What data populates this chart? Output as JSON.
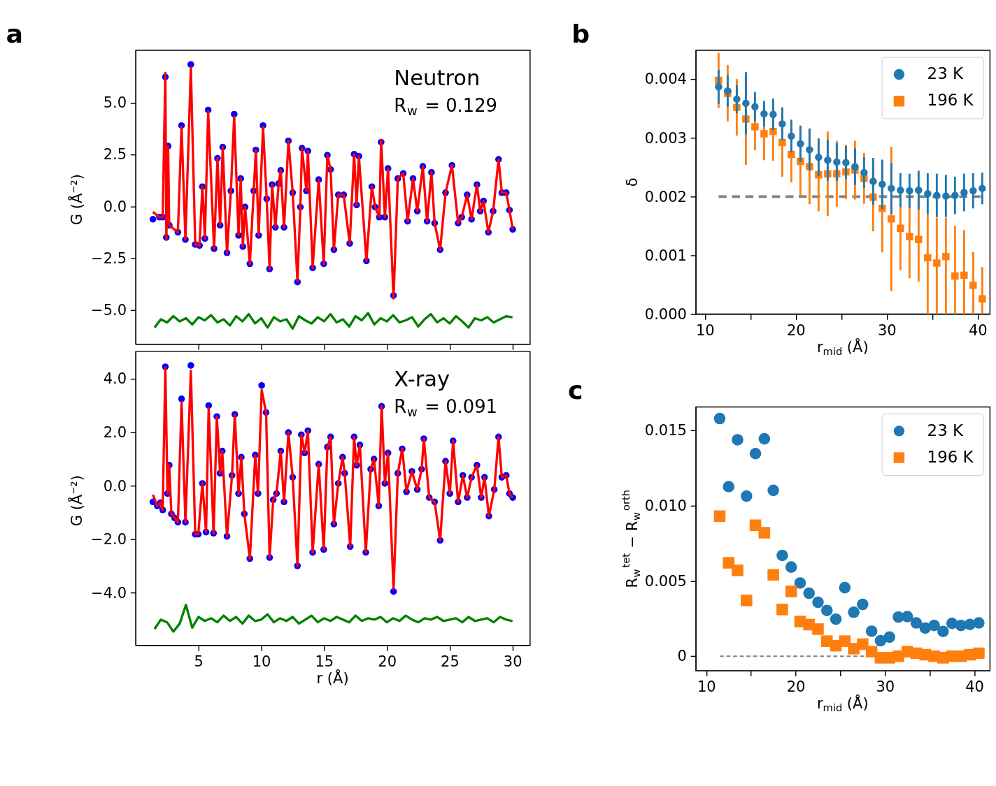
{
  "chart_data": [
    {
      "type": "line",
      "title": "a",
      "ylabel": "G (Å⁻²)",
      "annotations": [
        "Neutron",
        "R$_{w}$ = 0.129"
      ],
      "xlim": [
        0,
        31.4
      ],
      "ylim": [
        -6.65,
        7.53
      ],
      "xticks": [
        5,
        10,
        15,
        20,
        25,
        30
      ],
      "yticks": [
        {
          "value": -5.0,
          "label": "−5.0"
        },
        {
          "value": -2.5,
          "label": "−2.5"
        },
        {
          "value": 0.0,
          "label": "0.0"
        },
        {
          "value": 2.5,
          "label": "2.5"
        },
        {
          "value": 5.0,
          "label": "5.0"
        }
      ],
      "tick_labels": "y",
      "grid": false,
      "series": [
        {
          "type": "scatter",
          "marker": "circle",
          "color": "#0000ff",
          "x": [
            1.37,
            1.89,
            2.15,
            2.36,
            2.44,
            2.58,
            2.67,
            3.36,
            3.65,
            3.96,
            4.39,
            4.74,
            5.08,
            5.31,
            5.51,
            5.77,
            6.24,
            6.51,
            6.72,
            6.93,
            7.27,
            7.58,
            7.84,
            8.19,
            8.36,
            8.53,
            8.71,
            9.09,
            9.4,
            9.57,
            9.79,
            10.14,
            10.43,
            10.66,
            10.86,
            11.12,
            11.38,
            11.55,
            11.81,
            12.16,
            12.5,
            12.88,
            13.11,
            13.24,
            13.59,
            13.71,
            14.09,
            14.57,
            14.97,
            15.26,
            15.52,
            15.78,
            16.13,
            16.56,
            17.04,
            17.39,
            17.59,
            17.77,
            18.37,
            18.8,
            19.06,
            19.4,
            19.54,
            19.84,
            20.09,
            20.53,
            20.87,
            21.3,
            21.65,
            22.08,
            22.42,
            22.86,
            23.2,
            23.55,
            23.8,
            24.24,
            24.67,
            25.18,
            25.67,
            25.96,
            26.39,
            26.74,
            27.17,
            27.43,
            27.69,
            28.08,
            28.46,
            28.89,
            29.15,
            29.5,
            29.76,
            30.02
          ],
          "values": [
            -0.62,
            -0.52,
            -0.52,
            6.25,
            -1.5,
            2.91,
            -0.91,
            -1.25,
            3.9,
            -1.6,
            6.85,
            -1.84,
            -1.89,
            0.95,
            -1.55,
            4.65,
            -2.04,
            2.32,
            -0.91,
            2.86,
            -2.24,
            0.75,
            4.45,
            -1.4,
            1.34,
            -1.94,
            -0.03,
            -2.77,
            0.75,
            2.72,
            -1.4,
            3.9,
            0.36,
            -3.02,
            1.05,
            -1.01,
            1.1,
            1.74,
            -1.01,
            3.16,
            0.66,
            -3.65,
            -0.03,
            2.81,
            0.75,
            2.67,
            -2.97,
            1.29,
            -2.77,
            2.47,
            1.78,
            -2.09,
            0.56,
            0.56,
            -1.79,
            2.52,
            0.07,
            2.42,
            -2.63,
            0.95,
            -0.03,
            -0.52,
            3.1,
            -0.52,
            1.83,
            -4.3,
            1.34,
            1.59,
            -0.72,
            1.34,
            -0.23,
            1.93,
            -0.72,
            1.64,
            -0.81,
            -2.09,
            0.66,
            1.98,
            -0.81,
            -0.52,
            0.56,
            -0.62,
            1.05,
            -0.23,
            0.26,
            -1.25,
            -0.23,
            2.27,
            0.66,
            0.66,
            -0.18,
            -1.11
          ]
        },
        {
          "type": "line",
          "marker": "none",
          "line_style": "solid",
          "color": "#ff0000",
          "x": [
            1.37,
            1.89,
            2.15,
            2.36,
            2.44,
            2.58,
            2.67,
            3.36,
            3.65,
            3.96,
            4.39,
            4.74,
            5.08,
            5.31,
            5.51,
            5.77,
            6.24,
            6.51,
            6.72,
            6.93,
            7.27,
            7.58,
            7.84,
            8.19,
            8.36,
            8.53,
            8.71,
            9.09,
            9.4,
            9.57,
            9.79,
            10.14,
            10.43,
            10.66,
            10.86,
            11.12,
            11.38,
            11.55,
            11.81,
            12.16,
            12.5,
            12.88,
            13.11,
            13.24,
            13.59,
            13.71,
            14.09,
            14.57,
            14.97,
            15.26,
            15.52,
            15.78,
            16.13,
            16.56,
            17.04,
            17.39,
            17.59,
            17.77,
            18.37,
            18.8,
            19.06,
            19.4,
            19.54,
            19.84,
            20.09,
            20.53,
            20.87,
            21.3,
            21.65,
            22.08,
            22.42,
            22.86,
            23.2,
            23.55,
            23.8,
            24.24,
            24.67,
            25.18,
            25.67,
            25.96,
            26.39,
            26.74,
            27.17,
            27.43,
            27.69,
            28.08,
            28.46,
            28.89,
            29.15,
            29.5,
            29.76,
            30.02
          ],
          "values": [
            -0.27,
            -0.52,
            -0.52,
            6.44,
            -1.6,
            2.91,
            -0.91,
            -1.25,
            3.84,
            -1.6,
            6.69,
            -1.84,
            -1.89,
            0.95,
            -1.55,
            4.58,
            -2.04,
            2.32,
            -0.91,
            2.86,
            -2.24,
            0.75,
            4.33,
            -1.4,
            1.34,
            -1.94,
            -0.03,
            -2.77,
            0.75,
            2.72,
            -1.4,
            3.84,
            0.36,
            -3.02,
            1.05,
            -1.01,
            1.1,
            1.74,
            -1.01,
            3.16,
            0.66,
            -3.61,
            -0.03,
            2.81,
            0.75,
            2.67,
            -2.97,
            1.29,
            -2.77,
            2.47,
            1.78,
            -2.09,
            0.56,
            0.56,
            -1.79,
            2.52,
            0.07,
            2.42,
            -2.63,
            0.95,
            -0.03,
            -0.52,
            3.21,
            -0.52,
            1.83,
            -4.44,
            1.34,
            1.59,
            -0.72,
            1.34,
            -0.23,
            1.93,
            -0.72,
            1.64,
            -0.81,
            -2.09,
            0.66,
            1.98,
            -0.81,
            -0.52,
            0.56,
            -0.62,
            1.05,
            -0.23,
            0.26,
            -1.25,
            -0.23,
            2.27,
            0.66,
            0.66,
            -0.18,
            -1.11
          ]
        },
        {
          "type": "line",
          "marker": "none",
          "line_style": "solid",
          "color": "#008000",
          "x": [
            1.5,
            2,
            2.5,
            3,
            3.5,
            4,
            4.5,
            5,
            5.5,
            6,
            6.5,
            7,
            7.5,
            8,
            8.5,
            9,
            9.5,
            10,
            10.5,
            11,
            11.5,
            12,
            12.5,
            13,
            13.5,
            14,
            14.5,
            15,
            15.5,
            16,
            16.5,
            17,
            17.5,
            18,
            18.5,
            19,
            19.5,
            20,
            20.5,
            21,
            21.5,
            22,
            22.5,
            23,
            23.5,
            24,
            24.5,
            25,
            25.5,
            26,
            26.5,
            27,
            27.5,
            28,
            28.5,
            29,
            29.5,
            30
          ],
          "values": [
            -5.85,
            -5.45,
            -5.6,
            -5.3,
            -5.55,
            -5.4,
            -5.7,
            -5.35,
            -5.5,
            -5.25,
            -5.6,
            -5.45,
            -5.75,
            -5.3,
            -5.55,
            -5.2,
            -5.65,
            -5.4,
            -5.85,
            -5.35,
            -5.55,
            -5.45,
            -5.9,
            -5.3,
            -5.5,
            -5.65,
            -5.35,
            -5.55,
            -5.2,
            -5.6,
            -5.45,
            -5.8,
            -5.3,
            -5.5,
            -5.15,
            -5.7,
            -5.4,
            -5.55,
            -5.25,
            -5.6,
            -5.5,
            -5.35,
            -5.8,
            -5.45,
            -5.2,
            -5.6,
            -5.4,
            -5.65,
            -5.3,
            -5.55,
            -5.85,
            -5.4,
            -5.5,
            -5.35,
            -5.6,
            -5.45,
            -5.3,
            -5.35
          ]
        }
      ]
    },
    {
      "type": "line",
      "xlabel": "r (Å)",
      "ylabel": "G (Å⁻²)",
      "annotations": [
        "X-ray",
        "R$_{w}$ = 0.091"
      ],
      "xlim": [
        0,
        31.4
      ],
      "ylim": [
        -5.96,
        5.02
      ],
      "xticks": [
        5,
        10,
        15,
        20,
        25,
        30
      ],
      "yticks": [
        {
          "value": -4.0,
          "label": "−4.0"
        },
        {
          "value": -2.0,
          "label": "−2.0"
        },
        {
          "value": 0.0,
          "label": "0.0"
        },
        {
          "value": 2.0,
          "label": "2.0"
        },
        {
          "value": 4.0,
          "label": "4.0"
        }
      ],
      "grid": false,
      "series": [
        {
          "type": "scatter",
          "marker": "circle",
          "color": "#0000ff",
          "x": [
            1.37,
            1.72,
            1.98,
            2.15,
            2.36,
            2.53,
            2.67,
            2.84,
            3.1,
            3.36,
            3.65,
            3.96,
            4.39,
            4.74,
            4.98,
            5.31,
            5.6,
            5.81,
            6.2,
            6.46,
            6.72,
            6.89,
            7.27,
            7.67,
            7.89,
            8.19,
            8.41,
            8.65,
            9.09,
            9.52,
            9.74,
            10.03,
            10.38,
            10.66,
            10.95,
            11.21,
            11.55,
            11.81,
            12.16,
            12.5,
            12.88,
            13.19,
            13.45,
            13.71,
            14.09,
            14.57,
            14.97,
            15.26,
            15.52,
            15.78,
            16.13,
            16.47,
            16.64,
            17.08,
            17.39,
            17.59,
            17.85,
            18.32,
            18.71,
            18.97,
            19.35,
            19.58,
            19.84,
            20.09,
            20.53,
            20.87,
            21.22,
            21.56,
            21.99,
            22.42,
            22.77,
            22.94,
            23.37,
            23.8,
            24.24,
            24.67,
            25.01,
            25.27,
            25.67,
            26.05,
            26.39,
            26.74,
            27.17,
            27.51,
            27.77,
            28.12,
            28.55,
            28.89,
            29.15,
            29.5,
            29.76,
            30.02
          ],
          "values": [
            -0.6,
            -0.75,
            -0.63,
            -0.9,
            4.45,
            -0.29,
            0.77,
            -1.05,
            -1.2,
            -1.36,
            3.25,
            -1.36,
            4.5,
            -1.81,
            -1.81,
            0.09,
            -1.73,
            3.0,
            -1.77,
            2.59,
            0.47,
            1.3,
            -1.89,
            0.39,
            2.67,
            -0.29,
            1.07,
            -1.05,
            -2.72,
            1.15,
            -0.29,
            3.75,
            2.74,
            -2.68,
            -0.52,
            -0.29,
            1.3,
            -0.6,
            1.99,
            0.32,
            -2.99,
            1.91,
            1.23,
            2.06,
            -2.49,
            0.81,
            -2.38,
            1.45,
            1.83,
            -1.43,
            0.09,
            1.07,
            0.47,
            -2.27,
            1.83,
            0.77,
            1.53,
            -2.49,
            0.62,
            1.0,
            -0.75,
            2.97,
            0.09,
            1.23,
            -3.95,
            0.47,
            1.38,
            -0.22,
            0.54,
            -0.14,
            0.62,
            1.76,
            -0.44,
            -0.6,
            -2.04,
            0.92,
            -0.29,
            1.68,
            -0.6,
            0.39,
            -0.44,
            0.32,
            0.77,
            -0.44,
            0.32,
            -1.13,
            -0.14,
            1.83,
            0.32,
            0.39,
            -0.29,
            -0.44
          ]
        },
        {
          "type": "line",
          "marker": "none",
          "line_style": "solid",
          "color": "#ff0000",
          "x": [
            1.37,
            1.72,
            1.98,
            2.15,
            2.36,
            2.53,
            2.67,
            2.84,
            3.1,
            3.36,
            3.65,
            3.96,
            4.39,
            4.74,
            4.98,
            5.31,
            5.6,
            5.81,
            6.2,
            6.46,
            6.72,
            6.89,
            7.27,
            7.67,
            7.89,
            8.19,
            8.41,
            8.65,
            9.09,
            9.52,
            9.74,
            10.03,
            10.38,
            10.66,
            10.95,
            11.21,
            11.55,
            11.81,
            12.16,
            12.5,
            12.88,
            13.19,
            13.45,
            13.71,
            14.09,
            14.57,
            14.97,
            15.26,
            15.52,
            15.78,
            16.13,
            16.47,
            16.64,
            17.08,
            17.39,
            17.59,
            17.85,
            18.32,
            18.71,
            18.97,
            19.35,
            19.58,
            19.84,
            20.09,
            20.53,
            20.87,
            21.22,
            21.56,
            21.99,
            22.42,
            22.77,
            22.94,
            23.37,
            23.8,
            24.24,
            24.67,
            25.01,
            25.27,
            25.67,
            26.05,
            26.39,
            26.74,
            27.17,
            27.51,
            27.77,
            28.12,
            28.55,
            28.89,
            29.15,
            29.5,
            29.76,
            30.02
          ],
          "values": [
            -0.33,
            -0.75,
            -0.63,
            -0.9,
            4.42,
            -0.29,
            0.77,
            -1.05,
            -1.2,
            -1.36,
            3.12,
            -1.36,
            4.3,
            -1.81,
            -1.81,
            0.09,
            -1.73,
            2.9,
            -1.77,
            2.59,
            0.47,
            1.3,
            -1.89,
            0.39,
            2.67,
            -0.29,
            1.07,
            -1.05,
            -2.72,
            1.15,
            -0.29,
            3.58,
            2.74,
            -2.68,
            -0.52,
            -0.29,
            1.3,
            -0.6,
            1.99,
            0.32,
            -2.99,
            1.91,
            1.23,
            2.06,
            -2.49,
            0.81,
            -2.38,
            1.45,
            1.83,
            -1.43,
            0.09,
            1.07,
            0.47,
            -2.27,
            1.83,
            0.77,
            1.53,
            -2.49,
            0.62,
            1.0,
            -0.75,
            2.97,
            0.09,
            1.23,
            -3.86,
            0.47,
            1.38,
            -0.22,
            0.54,
            -0.14,
            0.62,
            1.76,
            -0.44,
            -0.6,
            -2.04,
            0.92,
            -0.29,
            1.68,
            -0.6,
            0.39,
            -0.44,
            0.32,
            0.77,
            -0.44,
            0.32,
            -1.13,
            -0.14,
            1.83,
            0.32,
            0.39,
            -0.29,
            -0.44
          ]
        },
        {
          "type": "line",
          "marker": "none",
          "line_style": "solid",
          "color": "#008000",
          "x": [
            1.5,
            2,
            2.5,
            3,
            3.5,
            4,
            4.5,
            5,
            5.5,
            6,
            6.5,
            7,
            7.5,
            8,
            8.5,
            9,
            9.5,
            10,
            10.5,
            11,
            11.5,
            12,
            12.5,
            13,
            13.5,
            14,
            14.5,
            15,
            15.5,
            16,
            16.5,
            17,
            17.5,
            18,
            18.5,
            19,
            19.5,
            20,
            20.5,
            21,
            21.5,
            22,
            22.5,
            23,
            23.5,
            24,
            24.5,
            25,
            25.5,
            26,
            26.5,
            27,
            27.5,
            28,
            28.5,
            29,
            29.5,
            30
          ],
          "values": [
            -5.35,
            -5.0,
            -5.1,
            -5.45,
            -5.15,
            -4.45,
            -5.3,
            -4.9,
            -5.05,
            -4.95,
            -5.1,
            -4.85,
            -5.05,
            -4.9,
            -5.15,
            -4.85,
            -5.05,
            -5.0,
            -4.8,
            -5.1,
            -4.95,
            -5.05,
            -4.9,
            -5.15,
            -5.0,
            -4.85,
            -5.1,
            -4.95,
            -5.05,
            -4.9,
            -5.0,
            -5.1,
            -4.85,
            -5.05,
            -4.95,
            -5.0,
            -4.9,
            -5.1,
            -4.95,
            -5.05,
            -4.85,
            -5.0,
            -5.1,
            -4.95,
            -5.0,
            -4.9,
            -5.05,
            -5.0,
            -4.95,
            -5.1,
            -4.9,
            -5.05,
            -5.0,
            -4.95,
            -5.1,
            -4.9,
            -5.0,
            -5.05
          ]
        }
      ]
    },
    {
      "type": "scatter",
      "title": "b",
      "xlabel": "r$_{mid}$ (Å)",
      "ylabel": "δ",
      "xlim": [
        9.0,
        41.35
      ],
      "ylim": [
        0,
        0.00449
      ],
      "xticks": [
        10,
        {
          "value": 15,
          "label": null
        },
        20,
        {
          "value": 25,
          "label": null
        },
        30,
        {
          "value": 35,
          "label": null
        },
        40
      ],
      "yticks": [
        {
          "value": 0,
          "label": "0.000"
        },
        {
          "value": 0.001,
          "label": "0.001"
        },
        {
          "value": 0.002,
          "label": "0.002"
        },
        {
          "value": 0.003,
          "label": "0.003"
        },
        {
          "value": 0.004,
          "label": "0.004"
        }
      ],
      "grid": false,
      "legend": "top right",
      "ref_lines": [
        {
          "axis": "y",
          "value": 0.002,
          "color": "#808080",
          "line_style": "dashed"
        }
      ],
      "series": [
        {
          "name": "23 K",
          "marker": "circle",
          "color": "#1f77b4",
          "x": [
            11.5,
            12.5,
            13.5,
            14.5,
            15.5,
            16.5,
            17.5,
            18.5,
            19.5,
            20.5,
            21.5,
            22.5,
            23.5,
            24.5,
            25.5,
            26.5,
            27.5,
            28.5,
            29.5,
            30.5,
            31.5,
            32.5,
            33.5,
            34.5,
            35.5,
            36.5,
            37.5,
            38.5,
            39.5,
            40.5
          ],
          "values": [
            0.00387,
            0.0038,
            0.00366,
            0.00359,
            0.00353,
            0.00341,
            0.0034,
            0.00324,
            0.00303,
            0.0029,
            0.0028,
            0.00267,
            0.00262,
            0.00259,
            0.00258,
            0.00251,
            0.00241,
            0.00226,
            0.00221,
            0.00214,
            0.00211,
            0.0021,
            0.00211,
            0.00205,
            0.00202,
            0.00201,
            0.00202,
            0.00207,
            0.0021,
            0.00214
          ],
          "errors": [
            0.00029,
            0.00027,
            0.00024,
            0.00053,
            0.00025,
            0.00022,
            0.00027,
            0.00028,
            0.00028,
            0.00031,
            0.00036,
            0.00032,
            0.00035,
            0.00032,
            0.00028,
            0.00031,
            0.00026,
            0.0004,
            0.00042,
            0.00043,
            0.00029,
            0.00029,
            0.00033,
            0.00035,
            0.00037,
            0.00036,
            0.00032,
            0.00032,
            0.0003,
            0.00027
          ]
        },
        {
          "name": "196 K",
          "marker": "square",
          "color": "#ff7f0e",
          "x": [
            11.5,
            12.5,
            13.5,
            14.5,
            15.5,
            16.5,
            17.5,
            18.5,
            19.5,
            20.5,
            21.5,
            22.5,
            23.5,
            24.5,
            25.5,
            26.5,
            27.5,
            28.5,
            29.5,
            30.5,
            31.5,
            32.5,
            33.5,
            34.5,
            35.5,
            36.5,
            37.5,
            38.5,
            39.5,
            40.5
          ],
          "values": [
            0.00398,
            0.00376,
            0.00352,
            0.00332,
            0.00319,
            0.00307,
            0.00311,
            0.00292,
            0.00272,
            0.0026,
            0.00251,
            0.00237,
            0.00239,
            0.00239,
            0.00242,
            0.00245,
            0.00231,
            0.00199,
            0.0018,
            0.00162,
            0.00146,
            0.00132,
            0.00127,
            0.00096,
            0.00087,
            0.00098,
            0.00065,
            0.00066,
            0.00049,
            0.00026
          ],
          "errors": [
            0.00047,
            0.00048,
            0.00048,
            0.00078,
            0.0004,
            0.00045,
            0.0005,
            0.00058,
            0.00048,
            0.00059,
            0.00064,
            0.00062,
            0.00072,
            0.00056,
            0.00046,
            0.0005,
            0.00043,
            0.00058,
            0.00075,
            0.00123,
            0.00071,
            0.00071,
            0.00072,
            [
              0,
              0.0017
            ],
            [
              0,
              0.00164
            ],
            [
              0,
              0.00164
            ],
            [
              0,
              0.0015
            ],
            [
              0,
              0.00143
            ],
            [
              0,
              0.00106
            ],
            [
              0,
              0.0008
            ]
          ]
        }
      ]
    },
    {
      "type": "scatter",
      "title": "c",
      "xlabel": "r$_{mid}$ (Å)",
      "ylabel": "R$_{w}$$^{tet}$ − R$_{w}$$^{orth}$",
      "xlim": [
        8.83,
        41.75
      ],
      "ylim": [
        -0.00096,
        0.01655
      ],
      "xticks": [
        10,
        {
          "value": 15,
          "label": null
        },
        20,
        {
          "value": 25,
          "label": null
        },
        30,
        {
          "value": 35,
          "label": null
        },
        40
      ],
      "yticks": [
        {
          "value": 0,
          "label": "0"
        },
        {
          "value": 0.005,
          "label": "0.005"
        },
        {
          "value": 0.01,
          "label": "0.010"
        },
        {
          "value": 0.015,
          "label": "0.015"
        }
      ],
      "grid": false,
      "legend": "top right",
      "ref_lines": [
        {
          "axis": "y",
          "value": 0,
          "color": "#808080",
          "line_style": "dashed"
        }
      ],
      "series": [
        {
          "name": "23 K",
          "marker": "circle",
          "color": "#1f77b4",
          "x": [
            11.5,
            12.5,
            13.5,
            14.5,
            15.5,
            16.5,
            17.5,
            18.5,
            19.5,
            20.5,
            21.5,
            22.5,
            23.5,
            24.5,
            25.5,
            26.5,
            27.5,
            28.5,
            29.5,
            30.5,
            31.5,
            32.5,
            33.5,
            34.5,
            35.5,
            36.5,
            37.5,
            38.5,
            39.5,
            40.5
          ],
          "values": [
            0.01578,
            0.01126,
            0.01437,
            0.01063,
            0.01345,
            0.01443,
            0.01101,
            0.00669,
            0.00592,
            0.00486,
            0.00418,
            0.00358,
            0.00304,
            0.00246,
            0.00455,
            0.00292,
            0.00344,
            0.00166,
            0.00103,
            0.00127,
            0.0026,
            0.00263,
            0.00221,
            0.00187,
            0.00204,
            0.00165,
            0.00218,
            0.00204,
            0.00211,
            0.00221
          ]
        },
        {
          "name": "196 K",
          "marker": "square",
          "color": "#ff7f0e",
          "x": [
            11.5,
            12.5,
            13.5,
            14.5,
            15.5,
            16.5,
            17.5,
            18.5,
            19.5,
            20.5,
            21.5,
            22.5,
            23.5,
            24.5,
            25.5,
            26.5,
            27.5,
            28.5,
            29.5,
            30.5,
            31.5,
            32.5,
            33.5,
            34.5,
            35.5,
            36.5,
            37.5,
            38.5,
            39.5,
            40.5
          ],
          "values": [
            0.0093,
            0.0062,
            0.0057,
            0.0037,
            0.0087,
            0.0082,
            0.0054,
            0.0031,
            0.0043,
            0.0023,
            0.0021,
            0.0018,
            0.001,
            0.0007,
            0.001,
            0.0005,
            0.0008,
            0.0003,
            -0.0001,
            -0.0001,
            0.0,
            0.0003,
            0.0002,
            0.0001,
            0.0,
            -0.0001,
            0.0,
            0.0,
            0.0001,
            0.0002
          ]
        }
      ]
    }
  ]
}
